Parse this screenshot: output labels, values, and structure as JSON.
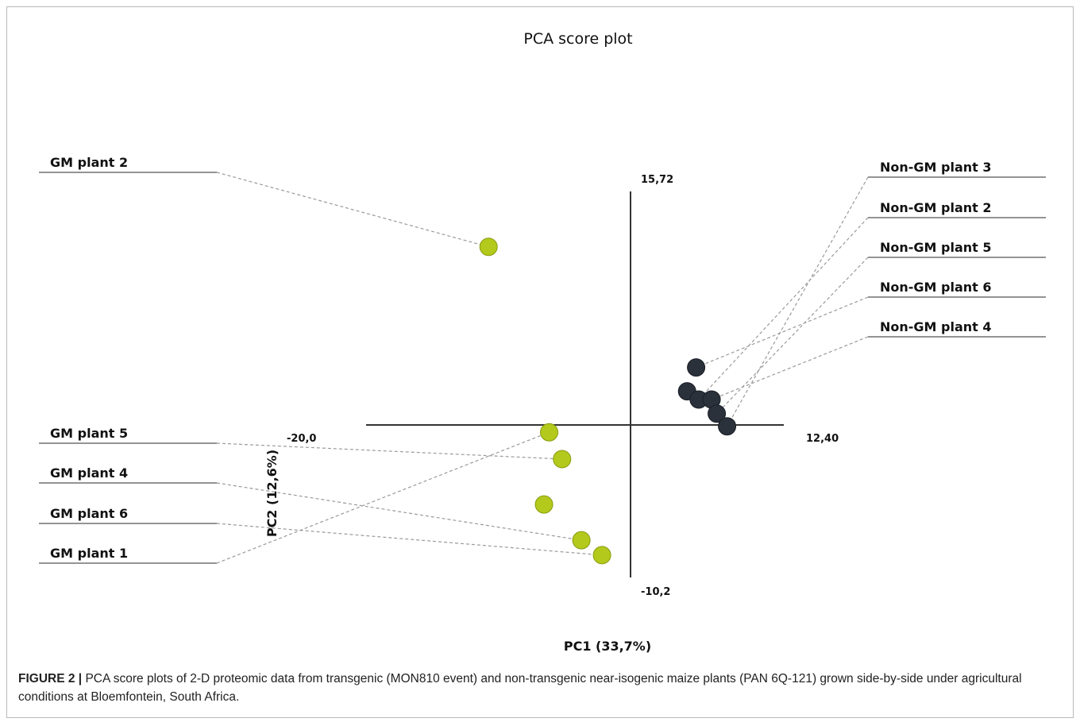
{
  "chart_data": {
    "type": "scatter",
    "title": "PCA score plot",
    "xlabel": "PC1 (33,7%)",
    "ylabel": "PC2 (12,6%)",
    "xlim": [
      -20.0,
      12.4
    ],
    "ylim": [
      -10.2,
      15.72
    ],
    "axis_labels": {
      "x_min": "-20,0",
      "x_max": "12,40",
      "y_max": "15,72",
      "y_min": "-10,2"
    },
    "grid": false,
    "legend": "none",
    "colors": {
      "gm": "#b3c91c",
      "non_gm": "#2b313b"
    },
    "series": [
      {
        "group": "gm",
        "points": [
          {
            "x": -10.5,
            "y": 12.0
          },
          {
            "x": -5.8,
            "y": -0.45
          },
          {
            "x": -4.8,
            "y": -2.25
          },
          {
            "x": -6.2,
            "y": -5.3
          },
          {
            "x": -3.3,
            "y": -7.7
          },
          {
            "x": -1.7,
            "y": -8.7
          }
        ]
      },
      {
        "group": "non_gm",
        "points": [
          {
            "x": 5.6,
            "y": 3.9
          },
          {
            "x": 4.9,
            "y": 2.3
          },
          {
            "x": 5.8,
            "y": 1.75
          },
          {
            "x": 6.8,
            "y": 1.75
          },
          {
            "x": 7.2,
            "y": 0.8
          },
          {
            "x": 8.0,
            "y": -0.05
          }
        ]
      }
    ],
    "callouts": [
      {
        "label": "GM plant 2",
        "side": "left",
        "point": 0,
        "group": "gm"
      },
      {
        "label": "GM plant 5",
        "side": "left",
        "point": 2,
        "group": "gm"
      },
      {
        "label": "GM plant 4",
        "side": "left",
        "point": 4,
        "group": "gm"
      },
      {
        "label": "GM plant 6",
        "side": "left",
        "point": 5,
        "group": "gm"
      },
      {
        "label": "GM plant 1",
        "side": "left",
        "point": 1,
        "group": "gm"
      },
      {
        "label": "Non-GM plant 3",
        "side": "right",
        "point": 5,
        "group": "non_gm"
      },
      {
        "label": "Non-GM plant 2",
        "side": "right",
        "point": 2,
        "group": "non_gm"
      },
      {
        "label": "Non-GM plant 5",
        "side": "right",
        "point": 4,
        "group": "non_gm"
      },
      {
        "label": "Non-GM plant 6",
        "side": "right",
        "point": 0,
        "group": "non_gm"
      },
      {
        "label": "Non-GM plant 4",
        "side": "right",
        "point": 3,
        "group": "non_gm"
      }
    ]
  },
  "caption": {
    "label": "FIGURE 2 |",
    "text": " PCA score plots of 2-D proteomic data from transgenic (MON810 event) and non-transgenic near-isogenic maize plants (PAN 6Q-121) grown side-by-side under agricultural conditions at Bloemfontein, South Africa."
  }
}
